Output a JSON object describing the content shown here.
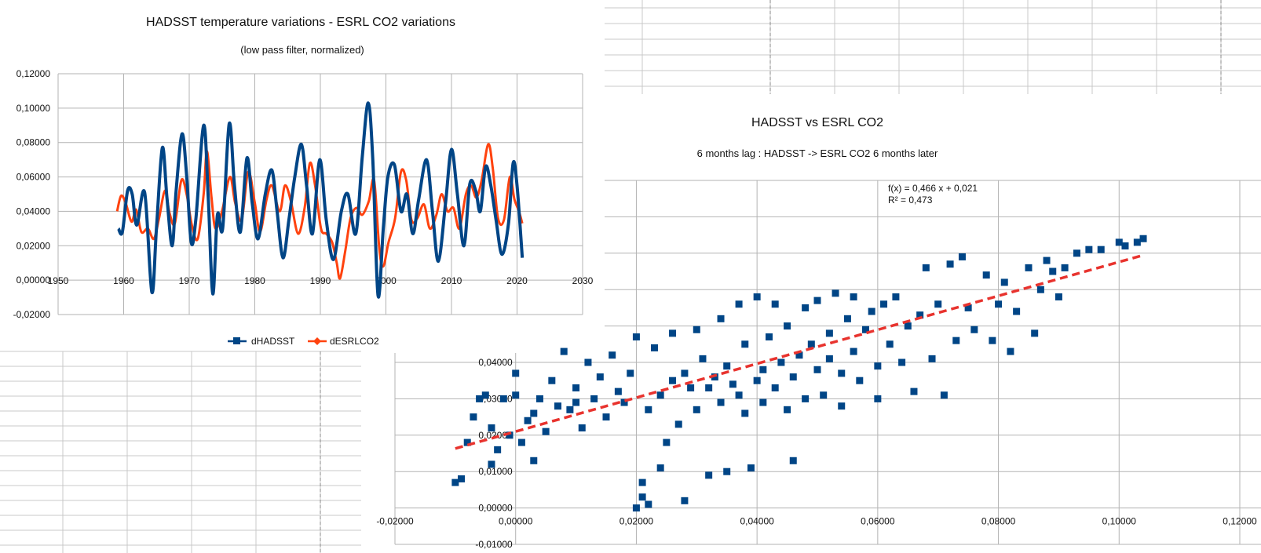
{
  "chart_data": [
    {
      "type": "line",
      "title": "HADSST temperature variations - ESRL CO2 variations",
      "subtitle": "(low pass filter, normalized)",
      "xlim": [
        1950,
        2030
      ],
      "ylim": [
        -0.02,
        0.12
      ],
      "x_ticks": [
        "1950",
        "1960",
        "1970",
        "1980",
        "1990",
        "2000",
        "2010",
        "2020",
        "2030"
      ],
      "y_ticks": [
        "0,12000",
        "0,10000",
        "0,08000",
        "0,06000",
        "0,04000",
        "0,02000",
        "0,00000",
        "-0,02000"
      ],
      "grid": true,
      "legend_position": "bottom",
      "series": [
        {
          "name": "dHADSST",
          "color": "#004586",
          "points": [
            [
              1959.2,
              0.03
            ],
            [
              1959.8,
              0.028
            ],
            [
              1960.6,
              0.052
            ],
            [
              1961.3,
              0.05
            ],
            [
              1962.0,
              0.032
            ],
            [
              1963.2,
              0.051
            ],
            [
              1964.3,
              -0.007
            ],
            [
              1965.0,
              0.03
            ],
            [
              1965.9,
              0.077
            ],
            [
              1966.6,
              0.048
            ],
            [
              1967.4,
              0.02
            ],
            [
              1968.0,
              0.052
            ],
            [
              1968.9,
              0.085
            ],
            [
              1969.6,
              0.061
            ],
            [
              1970.3,
              0.022
            ],
            [
              1971.0,
              0.035
            ],
            [
              1972.2,
              0.09
            ],
            [
              1972.9,
              0.048
            ],
            [
              1973.6,
              -0.008
            ],
            [
              1974.3,
              0.038
            ],
            [
              1975.1,
              0.03
            ],
            [
              1976.1,
              0.091
            ],
            [
              1976.9,
              0.055
            ],
            [
              1977.8,
              0.028
            ],
            [
              1978.8,
              0.071
            ],
            [
              1979.6,
              0.045
            ],
            [
              1980.5,
              0.024
            ],
            [
              1981.6,
              0.05
            ],
            [
              1982.6,
              0.064
            ],
            [
              1983.4,
              0.04
            ],
            [
              1984.3,
              0.013
            ],
            [
              1985.2,
              0.035
            ],
            [
              1986.1,
              0.06
            ],
            [
              1987.1,
              0.079
            ],
            [
              1987.9,
              0.055
            ],
            [
              1988.8,
              0.027
            ],
            [
              1989.9,
              0.07
            ],
            [
              1990.9,
              0.035
            ],
            [
              1992.0,
              0.012
            ],
            [
              1993.2,
              0.04
            ],
            [
              1994.2,
              0.05
            ],
            [
              1995.4,
              0.027
            ],
            [
              1996.4,
              0.072
            ],
            [
              1997.3,
              0.103
            ],
            [
              1998.0,
              0.07
            ],
            [
              1998.8,
              -0.009
            ],
            [
              1999.6,
              0.03
            ],
            [
              2000.3,
              0.06
            ],
            [
              2001.3,
              0.067
            ],
            [
              2002.3,
              0.04
            ],
            [
              2003.2,
              0.05
            ],
            [
              2004.1,
              0.027
            ],
            [
              2005.0,
              0.047
            ],
            [
              2006.2,
              0.07
            ],
            [
              2007.1,
              0.04
            ],
            [
              2008.0,
              0.011
            ],
            [
              2009.1,
              0.045
            ],
            [
              2010.0,
              0.076
            ],
            [
              2010.9,
              0.05
            ],
            [
              2011.9,
              0.02
            ],
            [
              2012.8,
              0.056
            ],
            [
              2013.7,
              0.052
            ],
            [
              2014.4,
              0.04
            ],
            [
              2015.2,
              0.066
            ],
            [
              2016.0,
              0.055
            ],
            [
              2016.8,
              0.035
            ],
            [
              2017.7,
              0.015
            ],
            [
              2018.7,
              0.033
            ],
            [
              2019.4,
              0.068
            ],
            [
              2020.0,
              0.055
            ],
            [
              2020.8,
              0.013
            ]
          ]
        },
        {
          "name": "dESRLCO2",
          "color": "#FF420E",
          "points": [
            [
              1959.0,
              0.04
            ],
            [
              1959.6,
              0.049
            ],
            [
              1960.3,
              0.045
            ],
            [
              1961.2,
              0.034
            ],
            [
              1961.9,
              0.041
            ],
            [
              1962.7,
              0.028
            ],
            [
              1963.7,
              0.03
            ],
            [
              1964.6,
              0.024
            ],
            [
              1965.4,
              0.036
            ],
            [
              1966.3,
              0.052
            ],
            [
              1967.0,
              0.039
            ],
            [
              1967.8,
              0.033
            ],
            [
              1968.8,
              0.058
            ],
            [
              1969.6,
              0.05
            ],
            [
              1970.4,
              0.032
            ],
            [
              1971.3,
              0.024
            ],
            [
              1972.2,
              0.05
            ],
            [
              1972.7,
              0.075
            ],
            [
              1973.4,
              0.048
            ],
            [
              1974.0,
              0.03
            ],
            [
              1975.0,
              0.04
            ],
            [
              1976.2,
              0.06
            ],
            [
              1977.0,
              0.045
            ],
            [
              1978.0,
              0.035
            ],
            [
              1979.0,
              0.063
            ],
            [
              1980.0,
              0.045
            ],
            [
              1980.8,
              0.028
            ],
            [
              1981.8,
              0.047
            ],
            [
              1982.6,
              0.055
            ],
            [
              1983.8,
              0.04
            ],
            [
              1984.6,
              0.055
            ],
            [
              1985.5,
              0.046
            ],
            [
              1986.6,
              0.027
            ],
            [
              1987.6,
              0.042
            ],
            [
              1988.4,
              0.068
            ],
            [
              1989.2,
              0.055
            ],
            [
              1990.1,
              0.03
            ],
            [
              1990.9,
              0.027
            ],
            [
              1991.8,
              0.022
            ],
            [
              1992.5,
              0.01
            ],
            [
              1993.0,
              0.001
            ],
            [
              1993.8,
              0.017
            ],
            [
              1994.6,
              0.036
            ],
            [
              1995.5,
              0.042
            ],
            [
              1996.4,
              0.038
            ],
            [
              1997.4,
              0.046
            ],
            [
              1998.2,
              0.058
            ],
            [
              1999.0,
              0.018
            ],
            [
              1999.6,
              0.008
            ],
            [
              2000.4,
              0.022
            ],
            [
              2001.4,
              0.036
            ],
            [
              2002.3,
              0.063
            ],
            [
              2003.1,
              0.058
            ],
            [
              2003.9,
              0.035
            ],
            [
              2004.8,
              0.036
            ],
            [
              2005.8,
              0.044
            ],
            [
              2006.7,
              0.03
            ],
            [
              2007.7,
              0.038
            ],
            [
              2008.5,
              0.05
            ],
            [
              2009.4,
              0.04
            ],
            [
              2010.3,
              0.042
            ],
            [
              2011.2,
              0.03
            ],
            [
              2012.2,
              0.05
            ],
            [
              2013.0,
              0.055
            ],
            [
              2013.8,
              0.048
            ],
            [
              2014.6,
              0.058
            ],
            [
              2015.6,
              0.079
            ],
            [
              2016.3,
              0.065
            ],
            [
              2017.1,
              0.036
            ],
            [
              2018.0,
              0.035
            ],
            [
              2018.9,
              0.06
            ],
            [
              2019.6,
              0.047
            ],
            [
              2020.3,
              0.04
            ],
            [
              2020.8,
              0.033
            ]
          ]
        }
      ]
    },
    {
      "type": "scatter",
      "title": "HADSST vs ESRL CO2",
      "subtitle": "6 months lag : HADSST -> ESRL CO2 6 months later",
      "xlim": [
        -0.02,
        0.12
      ],
      "ylim": [
        -0.01,
        0.09
      ],
      "x_ticks": [
        "-0,02000",
        "0,00000",
        "0,02000",
        "0,04000",
        "0,06000",
        "0,08000",
        "0,10000",
        "0,12000"
      ],
      "y_ticks": [
        "0,04000",
        "0,03000",
        "0,02000",
        "0,01000",
        "0,00000",
        "-0,01000"
      ],
      "grid": true,
      "marker_color": "#004586",
      "trendline": {
        "equation": "f(x) = 0,466 x + 0,021",
        "r_squared": "R² = 0,473",
        "slope": 0.466,
        "intercept": 0.021,
        "x_range": [
          -0.01,
          0.104
        ],
        "color": "#E8332E"
      },
      "points": [
        [
          -0.01,
          0.007
        ],
        [
          -0.009,
          0.008
        ],
        [
          -0.008,
          0.018
        ],
        [
          -0.007,
          0.025
        ],
        [
          -0.006,
          0.03
        ],
        [
          -0.005,
          0.031
        ],
        [
          -0.004,
          0.022
        ],
        [
          -0.004,
          0.012
        ],
        [
          -0.003,
          0.016
        ],
        [
          -0.002,
          0.03
        ],
        [
          -0.001,
          0.02
        ],
        [
          0.0,
          0.031
        ],
        [
          0.0,
          0.037
        ],
        [
          0.001,
          0.018
        ],
        [
          0.002,
          0.024
        ],
        [
          0.003,
          0.026
        ],
        [
          0.003,
          0.013
        ],
        [
          0.004,
          0.03
        ],
        [
          0.005,
          0.021
        ],
        [
          0.006,
          0.035
        ],
        [
          0.007,
          0.028
        ],
        [
          0.008,
          0.043
        ],
        [
          0.009,
          0.027
        ],
        [
          0.01,
          0.029
        ],
        [
          0.01,
          0.033
        ],
        [
          0.011,
          0.022
        ],
        [
          0.012,
          0.04
        ],
        [
          0.013,
          0.03
        ],
        [
          0.014,
          0.036
        ],
        [
          0.015,
          0.025
        ],
        [
          0.016,
          0.042
        ],
        [
          0.017,
          0.032
        ],
        [
          0.018,
          0.029
        ],
        [
          0.019,
          0.037
        ],
        [
          0.02,
          0.047
        ],
        [
          0.02,
          0.0
        ],
        [
          0.021,
          0.003
        ],
        [
          0.021,
          0.007
        ],
        [
          0.022,
          0.001
        ],
        [
          0.022,
          0.027
        ],
        [
          0.023,
          0.044
        ],
        [
          0.024,
          0.011
        ],
        [
          0.024,
          0.031
        ],
        [
          0.025,
          0.018
        ],
        [
          0.026,
          0.035
        ],
        [
          0.026,
          0.048
        ],
        [
          0.027,
          0.023
        ],
        [
          0.028,
          0.002
        ],
        [
          0.028,
          0.037
        ],
        [
          0.029,
          0.033
        ],
        [
          0.03,
          0.049
        ],
        [
          0.03,
          0.027
        ],
        [
          0.031,
          0.041
        ],
        [
          0.032,
          0.009
        ],
        [
          0.032,
          0.033
        ],
        [
          0.033,
          0.036
        ],
        [
          0.034,
          0.052
        ],
        [
          0.034,
          0.029
        ],
        [
          0.035,
          0.01
        ],
        [
          0.035,
          0.039
        ],
        [
          0.036,
          0.034
        ],
        [
          0.037,
          0.056
        ],
        [
          0.037,
          0.031
        ],
        [
          0.038,
          0.026
        ],
        [
          0.038,
          0.045
        ],
        [
          0.039,
          0.011
        ],
        [
          0.04,
          0.035
        ],
        [
          0.04,
          0.058
        ],
        [
          0.041,
          0.038
        ],
        [
          0.041,
          0.029
        ],
        [
          0.042,
          0.047
        ],
        [
          0.043,
          0.033
        ],
        [
          0.043,
          0.056
        ],
        [
          0.044,
          0.04
        ],
        [
          0.045,
          0.027
        ],
        [
          0.045,
          0.05
        ],
        [
          0.046,
          0.036
        ],
        [
          0.046,
          0.013
        ],
        [
          0.047,
          0.042
        ],
        [
          0.048,
          0.055
        ],
        [
          0.048,
          0.03
        ],
        [
          0.049,
          0.045
        ],
        [
          0.05,
          0.038
        ],
        [
          0.05,
          0.057
        ],
        [
          0.051,
          0.031
        ],
        [
          0.052,
          0.048
        ],
        [
          0.052,
          0.041
        ],
        [
          0.053,
          0.059
        ],
        [
          0.054,
          0.037
        ],
        [
          0.054,
          0.028
        ],
        [
          0.055,
          0.052
        ],
        [
          0.056,
          0.043
        ],
        [
          0.056,
          0.058
        ],
        [
          0.057,
          0.035
        ],
        [
          0.058,
          0.049
        ],
        [
          0.059,
          0.054
        ],
        [
          0.06,
          0.039
        ],
        [
          0.06,
          0.03
        ],
        [
          0.061,
          0.056
        ],
        [
          0.062,
          0.045
        ],
        [
          0.063,
          0.058
        ],
        [
          0.064,
          0.04
        ],
        [
          0.065,
          0.05
        ],
        [
          0.066,
          0.032
        ],
        [
          0.067,
          0.053
        ],
        [
          0.068,
          0.066
        ],
        [
          0.069,
          0.041
        ],
        [
          0.07,
          0.056
        ],
        [
          0.071,
          0.031
        ],
        [
          0.072,
          0.067
        ],
        [
          0.073,
          0.046
        ],
        [
          0.074,
          0.069
        ],
        [
          0.075,
          0.055
        ],
        [
          0.076,
          0.049
        ],
        [
          0.078,
          0.064
        ],
        [
          0.079,
          0.046
        ],
        [
          0.08,
          0.056
        ],
        [
          0.081,
          0.062
        ],
        [
          0.082,
          0.043
        ],
        [
          0.083,
          0.054
        ],
        [
          0.085,
          0.066
        ],
        [
          0.086,
          0.048
        ],
        [
          0.087,
          0.06
        ],
        [
          0.088,
          0.068
        ],
        [
          0.089,
          0.065
        ],
        [
          0.09,
          0.058
        ],
        [
          0.091,
          0.066
        ],
        [
          0.093,
          0.07
        ],
        [
          0.095,
          0.071
        ],
        [
          0.097,
          0.071
        ],
        [
          0.1,
          0.073
        ],
        [
          0.101,
          0.072
        ],
        [
          0.103,
          0.073
        ],
        [
          0.104,
          0.074
        ]
      ]
    }
  ],
  "legend": {
    "series1": "dHADSST",
    "series2": "dESRLCO2"
  }
}
